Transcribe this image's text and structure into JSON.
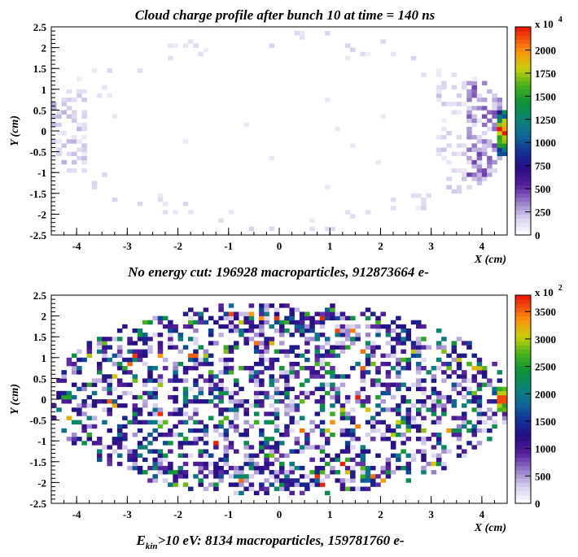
{
  "figure": {
    "title": "Cloud charge profile after bunch 10 at time = 140 ns"
  },
  "chart_data": [
    {
      "type": "heatmap",
      "caption": "No energy cut: 196928 macroparticles, 912873664 e-",
      "xlabel": "X (cm)",
      "ylabel": "Y (cm)",
      "xlim": [
        -4.5,
        4.5
      ],
      "ylim": [
        -2.5,
        2.5
      ],
      "x_ticks": [
        "-4",
        "-3",
        "-2",
        "-1",
        "0",
        "1",
        "2",
        "3",
        "4"
      ],
      "y_ticks": [
        "2.5",
        "2",
        "1.5",
        "1",
        "0.5",
        "0",
        "-0.5",
        "-1",
        "-1.5",
        "-2",
        "-2.5"
      ],
      "colorbar": {
        "multiplier_base": "x 10",
        "multiplier_exp": "4",
        "ticks": [
          "2000",
          "1750",
          "1500",
          "1250",
          "1000",
          "750",
          "500",
          "250",
          "0"
        ],
        "max": 2250
      },
      "grid": false,
      "distribution": "sparse faint cells across the chamber; concentrated stripe at x ≈ 4.3 to 4.5, |y| < 0.5, peak ≈ 2000 at y ≈ 0; weak cluster near x ≈ -4.3"
    },
    {
      "type": "heatmap",
      "caption_main": "E",
      "caption_sub": "kin",
      "caption_rest": ">10 eV: 8134 macroparticles, 159781760  e-",
      "xlabel": "X (cm)",
      "ylabel": "Y (cm)",
      "xlim": [
        -4.5,
        4.5
      ],
      "ylim": [
        -2.5,
        2.5
      ],
      "x_ticks": [
        "-4",
        "-3",
        "-2",
        "-1",
        "0",
        "1",
        "2",
        "3",
        "4"
      ],
      "y_ticks": [
        "2.5",
        "2",
        "1.5",
        "1",
        "0.5",
        "0",
        "-0.5",
        "-1",
        "-1.5",
        "-2",
        "-2.5"
      ],
      "colorbar": {
        "multiplier_base": "x 10",
        "multiplier_exp": "2",
        "ticks": [
          "3500",
          "3000",
          "2500",
          "2000",
          "1500",
          "1000",
          "500",
          "0"
        ],
        "max": 3800
      },
      "grid": false,
      "distribution": "cells fill an ellipse of semi-axes ≈ 4.5 × 2.3 cm; denser bands near y ≈ ±2; hot spot at x ≈ 4.4, y ≈ 0"
    }
  ]
}
